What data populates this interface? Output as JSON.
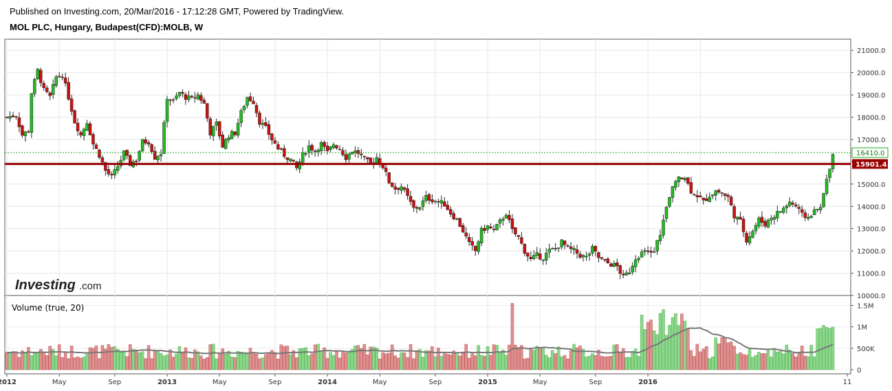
{
  "header": {
    "published": "Published on Investing.com, 20/Mar/2016 - 17:12:28 GMT, Powered by TradingView.",
    "instrument": "MOL PLC, Hungary, Budapest(CFD):MOLB, W"
  },
  "logo": {
    "main": "Investing",
    "sub": ".com"
  },
  "colors": {
    "up": "#22bb22",
    "down": "#cc1111",
    "support_line": "#990000",
    "last_price_line": "#22aa22",
    "vol_up": "#8ad98a",
    "vol_down": "#e09090",
    "vol_ma": "#777777"
  },
  "chart_data": {
    "type": "candlestick",
    "interval": "W",
    "price_axis": {
      "ylim": [
        10000,
        21500
      ],
      "ticks": [
        "21000.0",
        "20000.0",
        "19000.0",
        "18000.0",
        "17000.0",
        "16000.0",
        "15000.0",
        "14000.0",
        "13000.0",
        "12000.0",
        "11000.0",
        "10000.0"
      ]
    },
    "last_price": {
      "value": 16410.0,
      "label": "16410.0"
    },
    "horizontal_line": {
      "value": 15901.4,
      "label": "15901.4"
    },
    "x_axis_labels": [
      "2012",
      "May",
      "Sep",
      "2013",
      "May",
      "Sep",
      "2014",
      "May",
      "Sep",
      "2015",
      "May",
      "Sep",
      "2016",
      "11"
    ],
    "bold_year_labels": [
      "2012",
      "2013",
      "2014",
      "2015",
      "2016"
    ],
    "price_close_path": [
      [
        0,
        18000
      ],
      [
        3,
        18100
      ],
      [
        5,
        17200
      ],
      [
        7,
        17400
      ],
      [
        8,
        19100
      ],
      [
        10,
        20100
      ],
      [
        12,
        19200
      ],
      [
        14,
        18900
      ],
      [
        16,
        19800
      ],
      [
        18,
        19900
      ],
      [
        20,
        18900
      ],
      [
        22,
        17800
      ],
      [
        24,
        17200
      ],
      [
        26,
        17800
      ],
      [
        28,
        16800
      ],
      [
        30,
        16300
      ],
      [
        32,
        15600
      ],
      [
        34,
        15300
      ],
      [
        36,
        15800
      ],
      [
        38,
        16400
      ],
      [
        40,
        15900
      ],
      [
        42,
        16100
      ],
      [
        44,
        16900
      ],
      [
        46,
        16900
      ],
      [
        48,
        16200
      ],
      [
        50,
        16400
      ],
      [
        52,
        18900
      ],
      [
        54,
        18700
      ],
      [
        56,
        19100
      ],
      [
        58,
        18900
      ],
      [
        60,
        18800
      ],
      [
        62,
        19000
      ],
      [
        64,
        18600
      ],
      [
        66,
        17300
      ],
      [
        68,
        17700
      ],
      [
        70,
        16700
      ],
      [
        72,
        17200
      ],
      [
        74,
        17300
      ],
      [
        76,
        18200
      ],
      [
        78,
        18900
      ],
      [
        80,
        18700
      ],
      [
        82,
        17800
      ],
      [
        84,
        17500
      ],
      [
        86,
        17000
      ],
      [
        88,
        16600
      ],
      [
        90,
        16300
      ],
      [
        92,
        16100
      ],
      [
        94,
        15700
      ],
      [
        96,
        16300
      ],
      [
        98,
        16700
      ],
      [
        100,
        16500
      ],
      [
        102,
        16800
      ],
      [
        104,
        16400
      ],
      [
        106,
        16800
      ],
      [
        108,
        16600
      ],
      [
        110,
        16200
      ],
      [
        112,
        16500
      ],
      [
        114,
        16400
      ],
      [
        116,
        16100
      ],
      [
        118,
        15900
      ],
      [
        120,
        16200
      ],
      [
        122,
        15800
      ],
      [
        124,
        15100
      ],
      [
        126,
        14800
      ],
      [
        128,
        14900
      ],
      [
        130,
        14400
      ],
      [
        132,
        13900
      ],
      [
        134,
        14000
      ],
      [
        136,
        14400
      ],
      [
        138,
        14300
      ],
      [
        140,
        14200
      ],
      [
        142,
        14100
      ],
      [
        144,
        13700
      ],
      [
        146,
        13400
      ],
      [
        148,
        12900
      ],
      [
        150,
        12300
      ],
      [
        152,
        12000
      ],
      [
        154,
        12900
      ],
      [
        156,
        13100
      ],
      [
        158,
        12900
      ],
      [
        160,
        13300
      ],
      [
        162,
        13700
      ],
      [
        164,
        12900
      ],
      [
        166,
        12600
      ],
      [
        168,
        12000
      ],
      [
        170,
        11600
      ],
      [
        172,
        11800
      ],
      [
        174,
        11700
      ],
      [
        176,
        12000
      ],
      [
        178,
        12100
      ],
      [
        180,
        12400
      ],
      [
        182,
        12100
      ],
      [
        184,
        12000
      ],
      [
        186,
        11800
      ],
      [
        188,
        11700
      ],
      [
        190,
        12100
      ],
      [
        192,
        11700
      ],
      [
        194,
        11500
      ],
      [
        196,
        11400
      ],
      [
        198,
        11300
      ],
      [
        200,
        10800
      ],
      [
        202,
        11100
      ],
      [
        204,
        11700
      ],
      [
        206,
        11900
      ],
      [
        208,
        11900
      ],
      [
        210,
        12000
      ],
      [
        212,
        12800
      ],
      [
        214,
        13900
      ],
      [
        216,
        14800
      ],
      [
        218,
        15400
      ],
      [
        220,
        15300
      ],
      [
        222,
        14700
      ],
      [
        224,
        14500
      ],
      [
        226,
        14200
      ],
      [
        228,
        14500
      ],
      [
        230,
        14700
      ],
      [
        232,
        14600
      ],
      [
        234,
        14400
      ],
      [
        236,
        13600
      ],
      [
        238,
        13300
      ],
      [
        240,
        12500
      ],
      [
        242,
        12900
      ],
      [
        244,
        13400
      ],
      [
        246,
        13200
      ],
      [
        248,
        13500
      ],
      [
        250,
        13700
      ],
      [
        252,
        13900
      ],
      [
        254,
        14200
      ],
      [
        256,
        14000
      ],
      [
        258,
        13600
      ],
      [
        260,
        13500
      ],
      [
        262,
        13800
      ],
      [
        264,
        13900
      ],
      [
        266,
        15200
      ],
      [
        268,
        16410
      ]
    ],
    "volume_axis": {
      "ylim": [
        0,
        1700000
      ],
      "ticks": [
        {
          "value": 1500000,
          "label": "1.5M"
        },
        {
          "value": 1000000,
          "label": "1M"
        },
        {
          "value": 500000,
          "label": "500K"
        },
        {
          "value": 0,
          "label": "0"
        }
      ]
    },
    "volume_indicator": {
      "label": "Volume (true, 20)"
    }
  }
}
